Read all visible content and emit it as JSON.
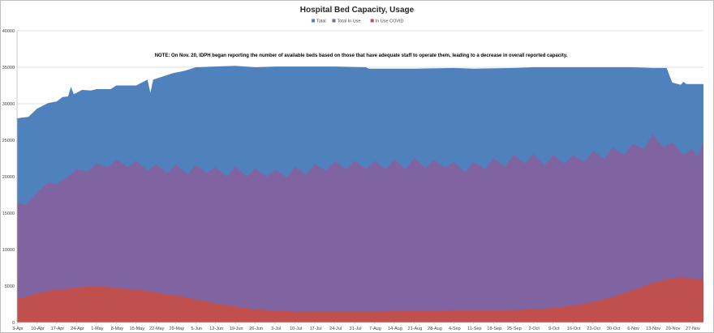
{
  "chart_data": {
    "type": "area",
    "title": "Hospital Bed Capacity, Usage",
    "note": "NOTE: On Nov. 20, IDPH began reporting the number of available beds based on those that have adequate staff to operate them, leading to a decrease in overall reported capacity.",
    "ylim": [
      0,
      40000
    ],
    "yticks": [
      0,
      5000,
      10000,
      15000,
      20000,
      25000,
      30000,
      35000,
      40000
    ],
    "x_tick_labels": [
      "3-Apr",
      "10-Apr",
      "17-Apr",
      "24-Apr",
      "1-May",
      "8-May",
      "15-May",
      "22-May",
      "29-May",
      "5-Jun",
      "12-Jun",
      "19-Jun",
      "26-Jun",
      "3-Jul",
      "10-Jul",
      "17-Jul",
      "24-Jul",
      "31-Jul",
      "7-Aug",
      "14-Aug",
      "21-Aug",
      "28-Aug",
      "4-Sep",
      "11-Sep",
      "18-Sep",
      "25-Sep",
      "2-Oct",
      "9-Oct",
      "16-Oct",
      "23-Oct",
      "30-Oct",
      "6-Nov",
      "13-Nov",
      "20-Nov",
      "27-Nov"
    ],
    "grid": true,
    "legend_position": "top",
    "x_start_date": "2020-04-03",
    "x_end_date": "2020-12-01",
    "series": [
      {
        "name": "Total",
        "color": "#4f81bd",
        "points": [
          [
            "2020-04-03",
            28000
          ],
          [
            "2020-04-07",
            28200
          ],
          [
            "2020-04-10",
            29300
          ],
          [
            "2020-04-14",
            30100
          ],
          [
            "2020-04-17",
            30300
          ],
          [
            "2020-04-19",
            30900
          ],
          [
            "2020-04-21",
            31000
          ],
          [
            "2020-04-22",
            32300
          ],
          [
            "2020-04-23",
            31300
          ],
          [
            "2020-04-26",
            31900
          ],
          [
            "2020-04-29",
            31800
          ],
          [
            "2020-05-01",
            32000
          ],
          [
            "2020-05-06",
            32000
          ],
          [
            "2020-05-08",
            32500
          ],
          [
            "2020-05-15",
            32500
          ],
          [
            "2020-05-19",
            33300
          ],
          [
            "2020-05-20",
            31500
          ],
          [
            "2020-05-21",
            33300
          ],
          [
            "2020-05-28",
            34200
          ],
          [
            "2020-06-01",
            34500
          ],
          [
            "2020-06-05",
            35000
          ],
          [
            "2020-06-19",
            35200
          ],
          [
            "2020-06-26",
            35000
          ],
          [
            "2020-07-03",
            35100
          ],
          [
            "2020-07-24",
            35100
          ],
          [
            "2020-08-04",
            35000
          ],
          [
            "2020-08-05",
            34800
          ],
          [
            "2020-08-21",
            34800
          ],
          [
            "2020-09-04",
            34900
          ],
          [
            "2020-09-11",
            34800
          ],
          [
            "2020-09-25",
            34900
          ],
          [
            "2020-10-02",
            35000
          ],
          [
            "2020-10-23",
            35000
          ],
          [
            "2020-11-06",
            35000
          ],
          [
            "2020-11-13",
            34900
          ],
          [
            "2020-11-18",
            34900
          ],
          [
            "2020-11-20",
            32900
          ],
          [
            "2020-11-23",
            32600
          ],
          [
            "2020-11-24",
            33000
          ],
          [
            "2020-11-25",
            32700
          ],
          [
            "2020-12-01",
            32700
          ]
        ]
      },
      {
        "name": "Total In Use",
        "color": "#8064a2",
        "points": [
          [
            "2020-04-03",
            16500
          ],
          [
            "2020-04-06",
            16100
          ],
          [
            "2020-04-10",
            17800
          ],
          [
            "2020-04-14",
            19200
          ],
          [
            "2020-04-17",
            19000
          ],
          [
            "2020-04-21",
            20000
          ],
          [
            "2020-04-24",
            21000
          ],
          [
            "2020-04-28",
            20700
          ],
          [
            "2020-05-01",
            21800
          ],
          [
            "2020-05-05",
            21300
          ],
          [
            "2020-05-08",
            22400
          ],
          [
            "2020-05-12",
            21300
          ],
          [
            "2020-05-15",
            22200
          ],
          [
            "2020-05-19",
            20800
          ],
          [
            "2020-05-22",
            21700
          ],
          [
            "2020-05-26",
            20500
          ],
          [
            "2020-05-29",
            21700
          ],
          [
            "2020-06-02",
            20300
          ],
          [
            "2020-06-05",
            21600
          ],
          [
            "2020-06-09",
            20500
          ],
          [
            "2020-06-12",
            21300
          ],
          [
            "2020-06-16",
            20000
          ],
          [
            "2020-06-19",
            21400
          ],
          [
            "2020-06-23",
            20000
          ],
          [
            "2020-06-26",
            21100
          ],
          [
            "2020-06-30",
            20000
          ],
          [
            "2020-07-03",
            21000
          ],
          [
            "2020-07-07",
            19900
          ],
          [
            "2020-07-10",
            21300
          ],
          [
            "2020-07-14",
            20300
          ],
          [
            "2020-07-17",
            21700
          ],
          [
            "2020-07-21",
            20800
          ],
          [
            "2020-07-24",
            22100
          ],
          [
            "2020-07-28",
            21000
          ],
          [
            "2020-07-31",
            22200
          ],
          [
            "2020-08-04",
            21000
          ],
          [
            "2020-08-07",
            22200
          ],
          [
            "2020-08-11",
            21000
          ],
          [
            "2020-08-14",
            22400
          ],
          [
            "2020-08-18",
            21000
          ],
          [
            "2020-08-21",
            22600
          ],
          [
            "2020-08-25",
            21200
          ],
          [
            "2020-08-28",
            22300
          ],
          [
            "2020-09-01",
            21200
          ],
          [
            "2020-09-04",
            22000
          ],
          [
            "2020-09-08",
            20600
          ],
          [
            "2020-09-11",
            22000
          ],
          [
            "2020-09-15",
            21000
          ],
          [
            "2020-09-18",
            22500
          ],
          [
            "2020-09-22",
            21400
          ],
          [
            "2020-09-25",
            23000
          ],
          [
            "2020-09-29",
            21800
          ],
          [
            "2020-10-02",
            23100
          ],
          [
            "2020-10-06",
            21600
          ],
          [
            "2020-10-09",
            23000
          ],
          [
            "2020-10-13",
            21800
          ],
          [
            "2020-10-16",
            23000
          ],
          [
            "2020-10-20",
            22000
          ],
          [
            "2020-10-23",
            23500
          ],
          [
            "2020-10-27",
            22500
          ],
          [
            "2020-10-30",
            24000
          ],
          [
            "2020-11-03",
            23000
          ],
          [
            "2020-11-06",
            24500
          ],
          [
            "2020-11-10",
            23800
          ],
          [
            "2020-11-13",
            25800
          ],
          [
            "2020-11-17",
            24000
          ],
          [
            "2020-11-20",
            24700
          ],
          [
            "2020-11-24",
            23000
          ],
          [
            "2020-11-27",
            23800
          ],
          [
            "2020-11-29",
            22800
          ],
          [
            "2020-12-01",
            24800
          ]
        ]
      },
      {
        "name": "In Use COVID",
        "color": "#c0504d",
        "points": [
          [
            "2020-04-03",
            3300
          ],
          [
            "2020-04-06",
            3500
          ],
          [
            "2020-04-10",
            4000
          ],
          [
            "2020-04-14",
            4300
          ],
          [
            "2020-04-17",
            4500
          ],
          [
            "2020-04-21",
            4600
          ],
          [
            "2020-04-24",
            4800
          ],
          [
            "2020-04-28",
            4900
          ],
          [
            "2020-05-01",
            5000
          ],
          [
            "2020-05-05",
            4900
          ],
          [
            "2020-05-08",
            4700
          ],
          [
            "2020-05-12",
            4600
          ],
          [
            "2020-05-15",
            4500
          ],
          [
            "2020-05-19",
            4300
          ],
          [
            "2020-05-22",
            4100
          ],
          [
            "2020-05-29",
            3700
          ],
          [
            "2020-06-05",
            3200
          ],
          [
            "2020-06-12",
            2600
          ],
          [
            "2020-06-19",
            2200
          ],
          [
            "2020-06-26",
            1800
          ],
          [
            "2020-07-03",
            1600
          ],
          [
            "2020-07-10",
            1500
          ],
          [
            "2020-07-24",
            1500
          ],
          [
            "2020-08-07",
            1500
          ],
          [
            "2020-08-21",
            1600
          ],
          [
            "2020-09-04",
            1700
          ],
          [
            "2020-09-18",
            1700
          ],
          [
            "2020-09-25",
            1700
          ],
          [
            "2020-10-02",
            1800
          ],
          [
            "2020-10-09",
            2000
          ],
          [
            "2020-10-16",
            2300
          ],
          [
            "2020-10-23",
            2800
          ],
          [
            "2020-10-30",
            3500
          ],
          [
            "2020-11-06",
            4400
          ],
          [
            "2020-11-13",
            5400
          ],
          [
            "2020-11-17",
            5800
          ],
          [
            "2020-11-20",
            6100
          ],
          [
            "2020-11-24",
            6200
          ],
          [
            "2020-11-27",
            6000
          ],
          [
            "2020-12-01",
            5900
          ]
        ]
      }
    ]
  }
}
